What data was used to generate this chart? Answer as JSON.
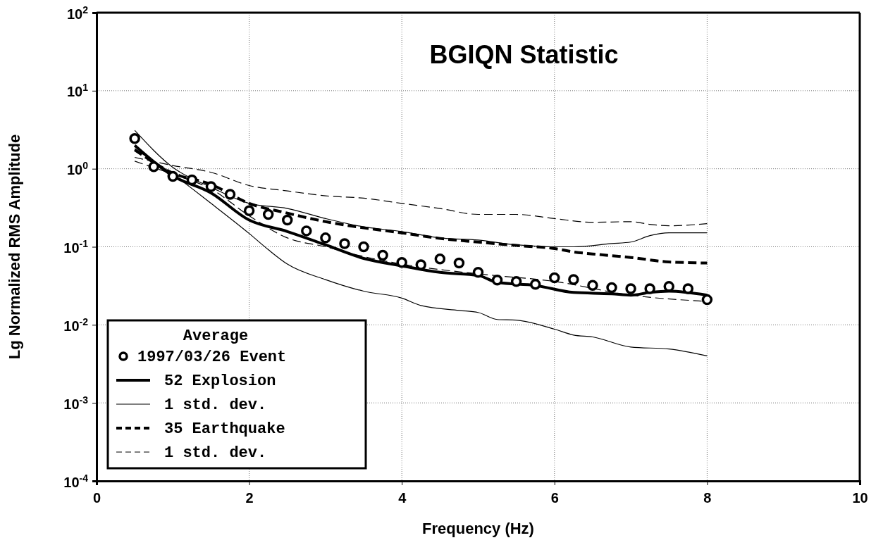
{
  "chart_data": {
    "type": "line",
    "title": "BGIQN Statistic",
    "xlabel": "Frequency (Hz)",
    "ylabel": "Lg Normalized RMS Amplitude",
    "legend_title": "Average",
    "legend": "bottom left",
    "log": "y",
    "grid": true,
    "xlim": [
      0,
      10
    ],
    "xticks": [
      0,
      2,
      4,
      6,
      8,
      10
    ],
    "ylim": [
      0.0001,
      100
    ],
    "yticks": [
      {
        "value": 0.0001,
        "label": "10$^{-4}$"
      },
      {
        "value": 0.001,
        "label": "10$^{-3}$"
      },
      {
        "value": 0.01,
        "label": "10$^{-2}$"
      },
      {
        "value": 0.1,
        "label": "10$^{-1}$"
      },
      {
        "value": 1,
        "label": "10$^{0}$"
      },
      {
        "value": 10,
        "label": "10$^{1}$"
      },
      {
        "value": 100,
        "label": "10$^{2}$"
      }
    ],
    "series": [
      {
        "name": "1997/03/26 Event",
        "type": "scatter",
        "marker": "circle",
        "color": "#000000",
        "x": [
          0.5,
          0.75,
          1,
          1.25,
          1.5,
          1.75,
          2,
          2.25,
          2.5,
          2.75,
          3,
          3.25,
          3.5,
          3.75,
          4,
          4.25,
          4.5,
          4.75,
          5,
          5.25,
          5.5,
          5.75,
          6,
          6.25,
          6.5,
          6.75,
          7,
          7.25,
          7.5,
          7.75,
          8
        ],
        "values": [
          2.44,
          1.06,
          0.8,
          0.72,
          0.59,
          0.47,
          0.29,
          0.26,
          0.22,
          0.16,
          0.13,
          0.11,
          0.1,
          0.078,
          0.063,
          0.059,
          0.07,
          0.062,
          0.047,
          0.0375,
          0.036,
          0.033,
          0.04,
          0.038,
          0.032,
          0.03,
          0.029,
          0.029,
          0.031,
          0.029,
          0.021
        ]
      },
      {
        "name": "52 Explosion",
        "line_style": "solid",
        "color": "#000000",
        "x": [
          0.5,
          1,
          1.5,
          2,
          2.5,
          3,
          3.5,
          4,
          4.5,
          5,
          5.25,
          5.75,
          6.25,
          6.75,
          7,
          7.25,
          7.5,
          8
        ],
        "values": [
          1.99,
          0.81,
          0.49,
          0.22,
          0.157,
          0.106,
          0.071,
          0.057,
          0.047,
          0.043,
          0.035,
          0.032,
          0.026,
          0.025,
          0.024,
          0.026,
          0.027,
          0.024
        ]
      },
      {
        "name": "1 std. dev.",
        "line_style": "solid",
        "color": "#000000",
        "x": [
          0.5,
          1,
          1.5,
          2,
          2.5,
          3,
          3.5,
          4,
          4.5,
          5,
          5.5,
          6,
          6.25,
          6.75,
          7,
          7.25,
          7.5,
          8
        ],
        "values": [
          3.1,
          1.04,
          0.58,
          0.36,
          0.31,
          0.23,
          0.18,
          0.157,
          0.13,
          0.122,
          0.106,
          0.1,
          0.1,
          0.11,
          0.115,
          0.139,
          0.151,
          0.151
        ]
      },
      {
        "line_style": "solid",
        "color": "#000000",
        "x": [
          0.5,
          1,
          1.5,
          2,
          2.25,
          2.5,
          3,
          3.5,
          4,
          4.25,
          4.75,
          5,
          5.25,
          5.5,
          6,
          6.25,
          6.5,
          7,
          7.5,
          8
        ],
        "values": [
          1.8,
          0.85,
          0.36,
          0.148,
          0.092,
          0.06,
          0.038,
          0.027,
          0.022,
          0.0177,
          0.0153,
          0.0144,
          0.0117,
          0.0115,
          0.0088,
          0.0074,
          0.007,
          0.0052,
          0.0049,
          0.004
        ]
      },
      {
        "name": "35 Earthquake",
        "line_style": "dashed",
        "color": "#000000",
        "x": [
          0.5,
          1,
          1.5,
          2,
          2.5,
          3,
          3.5,
          4,
          4.5,
          5,
          5.5,
          6,
          6.25,
          6.5,
          7,
          7.5,
          8
        ],
        "values": [
          1.75,
          0.88,
          0.63,
          0.36,
          0.27,
          0.21,
          0.175,
          0.151,
          0.128,
          0.115,
          0.104,
          0.095,
          0.086,
          0.081,
          0.073,
          0.064,
          0.062
        ]
      },
      {
        "name": "1 std. dev.",
        "line_style": "dashed",
        "color": "#000000",
        "x": [
          0.5,
          1,
          1.5,
          2,
          2.5,
          3,
          3.5,
          4,
          4.5,
          5,
          5.5,
          6,
          6.5,
          7,
          7.25,
          7.5,
          8
        ],
        "values": [
          1.4,
          1.1,
          0.9,
          0.61,
          0.52,
          0.45,
          0.42,
          0.36,
          0.31,
          0.26,
          0.26,
          0.23,
          0.206,
          0.21,
          0.194,
          0.186,
          0.198
        ]
      },
      {
        "line_style": "dashed",
        "color": "#000000",
        "x": [
          0.5,
          1,
          1.5,
          2,
          2.5,
          3,
          3.5,
          4,
          5,
          6,
          7,
          8
        ],
        "values": [
          1.25,
          0.85,
          0.55,
          0.25,
          0.13,
          0.1,
          0.075,
          0.06,
          0.045,
          0.036,
          0.024,
          0.02
        ]
      }
    ]
  }
}
